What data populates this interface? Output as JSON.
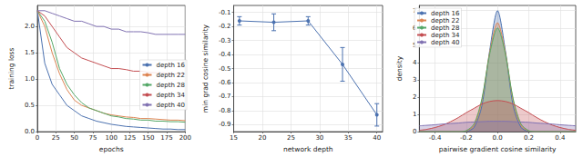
{
  "chart_data": [
    {
      "type": "line",
      "x_label": "epochs",
      "y_label": "training loss",
      "x": [
        0,
        10,
        20,
        30,
        40,
        50,
        60,
        70,
        80,
        90,
        100,
        110,
        120,
        130,
        140,
        150,
        160,
        170,
        180,
        190,
        200
      ],
      "series": [
        {
          "name": "depth 16",
          "color": "#4c72b0",
          "values": [
            2.3,
            1.3,
            0.9,
            0.7,
            0.5,
            0.4,
            0.3,
            0.25,
            0.2,
            0.17,
            0.14,
            0.12,
            0.1,
            0.09,
            0.08,
            0.07,
            0.06,
            0.05,
            0.05,
            0.04,
            0.04
          ]
        },
        {
          "name": "depth 22",
          "color": "#dd8452",
          "values": [
            2.3,
            2.0,
            1.5,
            1.1,
            0.8,
            0.6,
            0.5,
            0.45,
            0.4,
            0.35,
            0.32,
            0.3,
            0.28,
            0.27,
            0.25,
            0.25,
            0.24,
            0.23,
            0.22,
            0.22,
            0.21
          ]
        },
        {
          "name": "depth 28",
          "color": "#55a868",
          "values": [
            2.3,
            2.1,
            1.7,
            1.2,
            0.9,
            0.7,
            0.55,
            0.45,
            0.4,
            0.35,
            0.3,
            0.28,
            0.25,
            0.24,
            0.22,
            0.22,
            0.2,
            0.2,
            0.19,
            0.19,
            0.18
          ]
        },
        {
          "name": "depth 34",
          "color": "#c44e52",
          "values": [
            2.3,
            2.2,
            2.0,
            1.8,
            1.6,
            1.5,
            1.4,
            1.35,
            1.3,
            1.25,
            1.2,
            1.2,
            1.18,
            1.15,
            1.15,
            1.13,
            1.12,
            1.12,
            1.1,
            1.1,
            1.1
          ]
        },
        {
          "name": "depth 40",
          "color": "#8172b2",
          "values": [
            2.3,
            2.3,
            2.25,
            2.2,
            2.15,
            2.1,
            2.1,
            2.05,
            2.0,
            2.0,
            1.95,
            1.95,
            1.9,
            1.9,
            1.9,
            1.88,
            1.85,
            1.85,
            1.85,
            1.85,
            1.85
          ]
        }
      ],
      "xlim": [
        0,
        200
      ],
      "xticks": [
        0,
        25,
        50,
        75,
        100,
        125,
        150,
        175,
        200
      ],
      "ylim": [
        0,
        2.4
      ],
      "yticks": [
        {
          "value": 0,
          "label": "0.0"
        },
        0.5,
        {
          "value": 1,
          "label": "1.0"
        },
        1.5,
        {
          "value": 2,
          "label": "2.0"
        }
      ],
      "grid": true,
      "legend": "lower right"
    },
    {
      "type": "line",
      "x_label": "network depth",
      "y_label": "min grad cosine similarity",
      "x": [
        16,
        22,
        28,
        34,
        40
      ],
      "series": [
        {
          "color": "#4c72b0",
          "marker": "circle",
          "values": [
            -0.16,
            -0.17,
            -0.16,
            -0.47,
            -0.83
          ],
          "errors": [
            0.03,
            0.06,
            0.03,
            0.12,
            0.08
          ]
        }
      ],
      "xlim": [
        15,
        41
      ],
      "xticks": [
        15,
        20,
        25,
        30,
        35,
        40
      ],
      "ylim": [
        -0.95,
        -0.05
      ],
      "yticks": [
        -0.9,
        -0.8,
        -0.7,
        -0.6,
        -0.5,
        -0.4,
        -0.3,
        -0.2,
        -0.1
      ],
      "grid": true
    },
    {
      "type": "area",
      "x_label": "pairwise gradient cosine similarity",
      "y_label": "density",
      "x": [
        -0.5,
        -0.45,
        -0.4,
        -0.35,
        -0.3,
        -0.25,
        -0.2,
        -0.15,
        -0.1,
        -0.05,
        0,
        0.05,
        0.1,
        0.15,
        0.2,
        0.25,
        0.3,
        0.35,
        0.4,
        0.45,
        0.5
      ],
      "series": [
        {
          "name": "depth 16",
          "color": "#4c72b0",
          "values": [
            0,
            0,
            0,
            0,
            0,
            0,
            0.02,
            0.25,
            1.5,
            4.7,
            7.0,
            4.7,
            1.5,
            0.25,
            0.02,
            0,
            0,
            0,
            0,
            0,
            0
          ]
        },
        {
          "name": "depth 22",
          "color": "#dd8452",
          "values": [
            0,
            0,
            0,
            0,
            0,
            0,
            0.04,
            0.37,
            1.8,
            4.6,
            6.3,
            4.6,
            1.8,
            0.37,
            0.04,
            0,
            0,
            0,
            0,
            0,
            0
          ]
        },
        {
          "name": "depth 28",
          "color": "#55a868",
          "values": [
            0,
            0,
            0,
            0,
            0,
            0,
            0.06,
            0.45,
            1.9,
            4.5,
            6.0,
            4.5,
            1.9,
            0.45,
            0.06,
            0,
            0,
            0,
            0,
            0,
            0
          ]
        },
        {
          "name": "depth 34",
          "color": "#c44e52",
          "values": [
            0.08,
            0.14,
            0.24,
            0.38,
            0.58,
            0.82,
            1.1,
            1.35,
            1.6,
            1.75,
            1.8,
            1.75,
            1.6,
            1.35,
            1.1,
            0.82,
            0.58,
            0.38,
            0.24,
            0.14,
            0.08
          ]
        },
        {
          "name": "depth 40",
          "color": "#8172b2",
          "values": [
            0.34,
            0.37,
            0.4,
            0.44,
            0.47,
            0.5,
            0.54,
            0.56,
            0.58,
            0.6,
            0.6,
            0.6,
            0.58,
            0.56,
            0.54,
            0.5,
            0.47,
            0.44,
            0.4,
            0.37,
            0.34
          ]
        }
      ],
      "xlim": [
        -0.5,
        0.5
      ],
      "xticks": [
        -0.4,
        -0.2,
        {
          "value": 0,
          "label": "0.0"
        },
        0.2,
        0.4
      ],
      "ylim": [
        0,
        7.3
      ],
      "yticks": [
        0,
        1,
        2,
        3,
        4,
        5,
        6,
        7
      ],
      "grid": true,
      "legend": "upper left"
    }
  ]
}
